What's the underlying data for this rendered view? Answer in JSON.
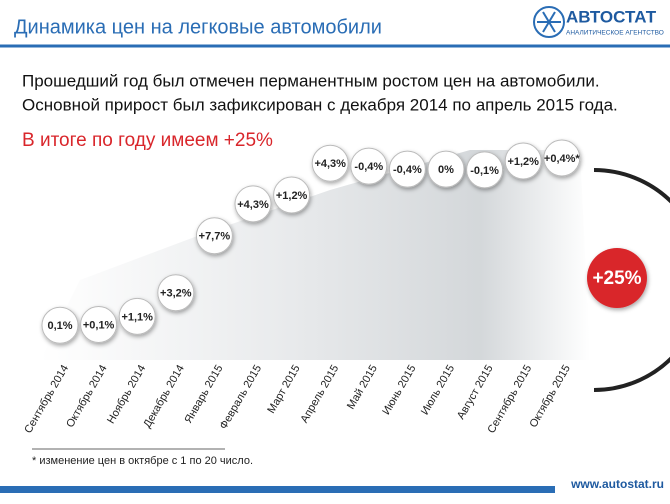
{
  "header": {
    "title": "Динамика цен на легковые автомобили",
    "logo": "АВТОСТАТ",
    "logo_sub": "АНАЛИТИЧЕСКОЕ АГЕНТСТВО"
  },
  "chart_data": {
    "type": "bubble",
    "subtitle": [
      "Прошедший год был отмечен перманентным ростом цен на автомобили.",
      "Основной прирост был зафиксирован с декабря 2014 по апрель 2015 года."
    ],
    "annotation": "В итоге по году имеем +25%",
    "categories": [
      "Сентябрь 2014",
      "Октябрь 2014",
      "Ноябрь 2014",
      "Декабрь 2014",
      "Январь 2015",
      "Февраль 2015",
      "Март 2015",
      "Апрель 2015",
      "Май 2015",
      "Июнь 2015",
      "Июль 2015",
      "Август 2015",
      "Сентябрь 2015",
      "Октябрь 2015"
    ],
    "values": [
      0.1,
      0.1,
      1.1,
      3.2,
      7.7,
      4.3,
      1.2,
      4.3,
      -0.4,
      -0.4,
      0,
      -0.1,
      1.2,
      0.4
    ],
    "value_labels": [
      "0,1%",
      "+0,1%",
      "+1,1%",
      "+3,2%",
      "+7,7%",
      "+4,3%",
      "+1,2%",
      "+4,3%",
      "-0,4%",
      "-0,4%",
      "0%",
      "-0,1%",
      "+1,2%",
      "+0,4%*"
    ],
    "total": 25,
    "total_label": "+25%",
    "color": "#ffffff",
    "total_color": "#d9262b",
    "footnote": "* изменение цен в октябре с 1 по 20 число."
  },
  "footer": {
    "url": "www.autostat.ru"
  }
}
